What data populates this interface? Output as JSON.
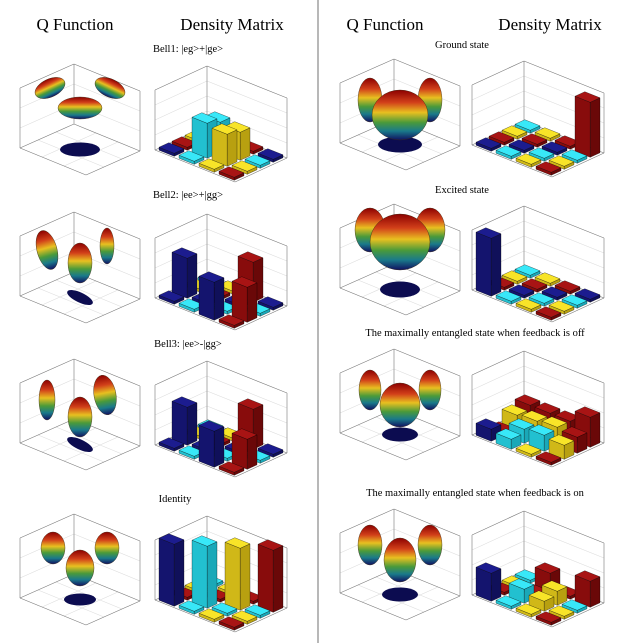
{
  "left": {
    "headers": [
      "Q Function",
      "Density Matrix"
    ],
    "panels": [
      {
        "label": "Bell1: |eg>+|ge>"
      },
      {
        "label": "Bell2: |ee>+|gg>"
      },
      {
        "label": "Bell3: |ee>-|gg>"
      },
      {
        "label": "Identity"
      }
    ]
  },
  "right": {
    "headers": [
      "Q Function",
      "Density Matrix"
    ],
    "panels": [
      {
        "label": "Ground state"
      },
      {
        "label": "Excited state"
      },
      {
        "label": "The maximally entangled state when  feedback is off"
      },
      {
        "label": "The maximally entangled state when feedback is on"
      }
    ]
  }
}
